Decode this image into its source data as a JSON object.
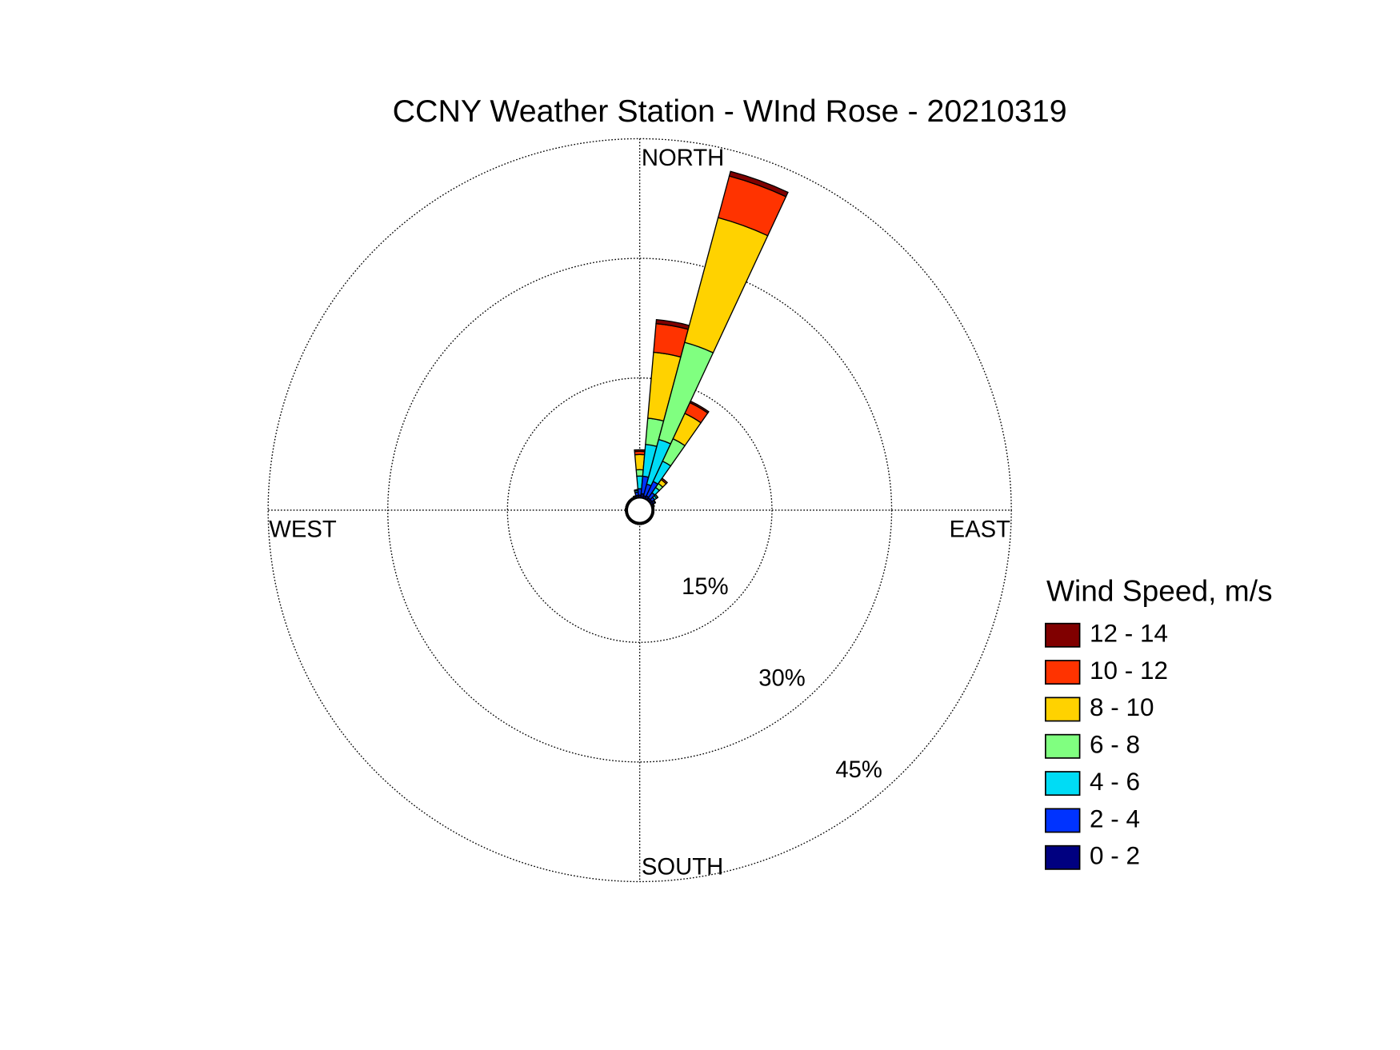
{
  "chart_data": {
    "type": "windrose",
    "title": "CCNY Weather Station - WInd Rose - 20210319",
    "direction_labels": {
      "north": "NORTH",
      "east": "EAST",
      "south": "SOUTH",
      "west": "WEST"
    },
    "legend_title": "Wind Speed, m/s",
    "theta": [
      0,
      10,
      20,
      30,
      40,
      50,
      60,
      70,
      80,
      90,
      100,
      110,
      120,
      130,
      140,
      150,
      160,
      170,
      180,
      190,
      200,
      210,
      220,
      230,
      240,
      250,
      260,
      270,
      280,
      290,
      300,
      310,
      320,
      330,
      340,
      350
    ],
    "rlim": [
      0,
      45
    ],
    "rticks": [
      {
        "value": 15,
        "label": "15%"
      },
      {
        "value": 30,
        "label": "30%"
      },
      {
        "value": 45,
        "label": "45%"
      }
    ],
    "grid": true,
    "series": [
      {
        "name": "0 - 2",
        "color": "#000080",
        "values": [
          0.3,
          0.5,
          0.3,
          0.4,
          0.3,
          0.3,
          0.3,
          0.2,
          0.2,
          0.2,
          0.2,
          0.2,
          0.2,
          0.2,
          0.2,
          0.2,
          0.2,
          0.2,
          0.2,
          0.2,
          0.2,
          0.2,
          0.2,
          0.2,
          0.2,
          0.2,
          0.2,
          0.2,
          0.2,
          0.2,
          0.2,
          0.2,
          0.2,
          0.2,
          0.2,
          0.3
        ]
      },
      {
        "name": "2 - 4",
        "color": "#0033ff",
        "values": [
          0.8,
          2.2,
          1.5,
          2.0,
          0.8,
          0.4,
          0.2,
          0.1,
          0,
          0,
          0,
          0,
          0,
          0,
          0,
          0,
          0,
          0,
          0,
          0,
          0,
          0,
          0,
          0,
          0,
          0,
          0,
          0,
          0,
          0,
          0,
          0,
          0,
          0,
          0.1,
          0.4
        ]
      },
      {
        "name": "4 - 6",
        "color": "#00dcf5",
        "values": [
          1.6,
          4.0,
          5.8,
          2.8,
          0.8,
          0.3,
          0.1,
          0,
          0,
          0,
          0,
          0,
          0,
          0,
          0,
          0,
          0,
          0,
          0,
          0,
          0,
          0,
          0,
          0,
          0,
          0,
          0,
          0,
          0,
          0,
          0,
          0,
          0,
          0,
          0,
          0.2
        ]
      },
      {
        "name": "6 - 8",
        "color": "#80ff80",
        "values": [
          0.8,
          3.3,
          12.6,
          3.1,
          0.6,
          0.2,
          0,
          0,
          0,
          0,
          0,
          0,
          0,
          0,
          0,
          0,
          0,
          0,
          0,
          0,
          0,
          0,
          0,
          0,
          0,
          0,
          0,
          0,
          0,
          0,
          0,
          0,
          0,
          0,
          0,
          0.1
        ]
      },
      {
        "name": "8 - 10",
        "color": "#ffd200",
        "values": [
          1.9,
          8.3,
          16.2,
          3.5,
          0.6,
          0,
          0,
          0,
          0,
          0,
          0,
          0,
          0,
          0,
          0,
          0,
          0,
          0,
          0,
          0,
          0,
          0,
          0,
          0,
          0,
          0,
          0,
          0,
          0,
          0,
          0,
          0,
          0,
          0,
          0,
          0
        ]
      },
      {
        "name": "10 - 12",
        "color": "#ff3300",
        "values": [
          0.4,
          3.6,
          5.4,
          1.5,
          0.2,
          0,
          0,
          0,
          0,
          0,
          0,
          0,
          0,
          0,
          0,
          0,
          0,
          0,
          0,
          0,
          0,
          0,
          0,
          0,
          0,
          0,
          0,
          0,
          0,
          0,
          0,
          0,
          0,
          0,
          0,
          0
        ]
      },
      {
        "name": "12 - 14",
        "color": "#800000",
        "values": [
          0.2,
          0.5,
          0.6,
          0.2,
          0,
          0,
          0,
          0,
          0,
          0,
          0,
          0,
          0,
          0,
          0,
          0,
          0,
          0,
          0,
          0,
          0,
          0,
          0,
          0,
          0,
          0,
          0,
          0,
          0,
          0,
          0,
          0,
          0,
          0,
          0,
          0
        ]
      }
    ]
  }
}
